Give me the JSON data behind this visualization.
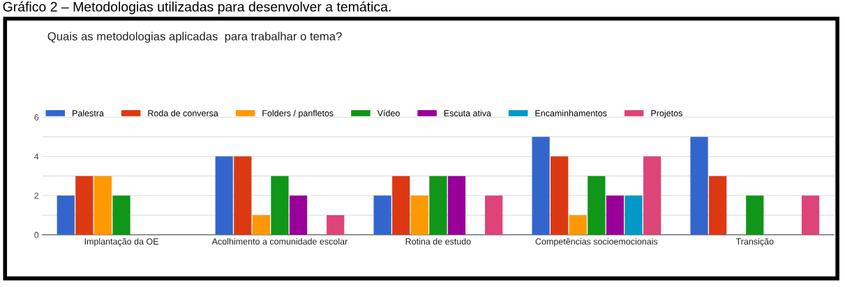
{
  "chart_data": {
    "type": "bar",
    "title": "Quais as metodologias aplicadas  para trabalhar o tema?",
    "annotations": [
      "Gráfico 2 – Metodologias utilizadas para desenvolver a temática."
    ],
    "categories": [
      "Implantação da OE",
      "Acolhimento a comunidade escolar",
      "Rotina de estudo",
      "Competências socioemocionais",
      "Transição"
    ],
    "series": [
      {
        "name": "Palestra",
        "color": "#3366cc",
        "values": [
          2,
          4,
          2,
          5,
          5
        ]
      },
      {
        "name": "Roda de conversa",
        "color": "#dc3912",
        "values": [
          3,
          4,
          3,
          4,
          3
        ]
      },
      {
        "name": "Folders / panfletos",
        "color": "#ff9900",
        "values": [
          3,
          1,
          2,
          1,
          0
        ]
      },
      {
        "name": "Vídeo",
        "color": "#109618",
        "values": [
          2,
          3,
          3,
          3,
          2
        ]
      },
      {
        "name": "Escuta ativa",
        "color": "#990099",
        "values": [
          0,
          2,
          3,
          2,
          0
        ]
      },
      {
        "name": "Encaminhamentos",
        "color": "#0099c6",
        "values": [
          0,
          0,
          0,
          2,
          0
        ]
      },
      {
        "name": "Projetos",
        "color": "#dd4477",
        "values": [
          0,
          1,
          2,
          4,
          2
        ]
      }
    ],
    "ylim": [
      0,
      6.3
    ],
    "yticks": [
      0,
      {
        "value": 1,
        "label": null
      },
      2,
      {
        "value": 3,
        "label": null
      },
      4,
      {
        "value": 5,
        "label": null
      },
      6
    ],
    "grid": "y",
    "legend": "top left"
  }
}
